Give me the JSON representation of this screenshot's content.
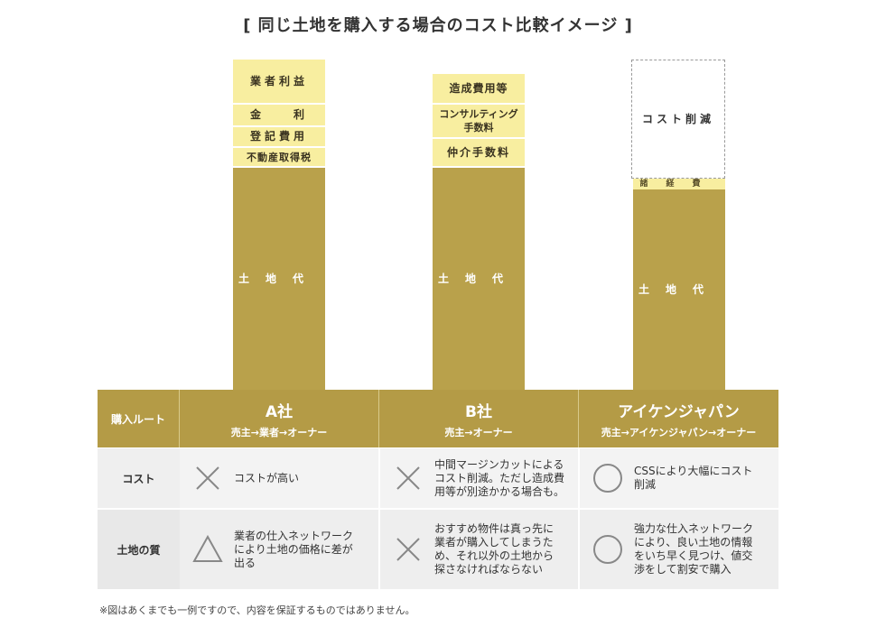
{
  "title": "[ 同じ土地を購入する場合のコスト比較イメージ ]",
  "chart_data": {
    "type": "stacked-bar",
    "title": "[ 同じ土地を購入する場合のコスト比較イメージ ]",
    "columns": [
      {
        "name": "A社",
        "segments": [
          "業者利益",
          "金　　利",
          "登記費用",
          "不動産取得税",
          "土地代"
        ]
      },
      {
        "name": "B社",
        "segments": [
          "造成費用等",
          "コンサルティング 手数料",
          "仲介手数料",
          "土地代"
        ]
      },
      {
        "name": "アイケンジャパン",
        "segments": [
          "コスト削減",
          "諸経費",
          "土地代"
        ]
      }
    ]
  },
  "bars": {
    "a": {
      "profit": "業者利益",
      "interest": "金　　利",
      "registration": "登記費用",
      "tax": "不動産取得税",
      "land": "土地代"
    },
    "b": {
      "construction": "造成費用等",
      "consulting_1": "コンサルティング",
      "consulting_2": "手数料",
      "brokerage": "仲介手数料",
      "land": "土地代"
    },
    "c": {
      "reduction": "コスト削減",
      "misc": "諸経費",
      "land": "土地代"
    }
  },
  "colors": {
    "land": "#b9a14b",
    "extra": "#f8eea0",
    "header": "#b49b46"
  },
  "table": {
    "route_label": "購入ルート",
    "columns": [
      {
        "name": "A社",
        "route": "売主→業者→オーナー"
      },
      {
        "name": "B社",
        "route": "売主→オーナー"
      },
      {
        "name": "アイケンジャパン",
        "route": "売主→アイケンジャパン→オーナー"
      }
    ],
    "rows": [
      {
        "label": "コスト",
        "cells": [
          {
            "symbol": "cross",
            "text": "コストが高い"
          },
          {
            "symbol": "cross",
            "text": "中間マージンカットによる\nコスト削減。ただし造成費\n用等が別途かかる場合も。"
          },
          {
            "symbol": "circle",
            "text": "CSSにより大幅にコスト\n削減"
          }
        ]
      },
      {
        "label": "土地の質",
        "cells": [
          {
            "symbol": "triangle",
            "text": "業者の仕入ネットワーク\nにより土地の価格に差が\n出る"
          },
          {
            "symbol": "cross",
            "text": "おすすめ物件は真っ先に\n業者が購入してしまうた\nめ、それ以外の土地から\n探さなければならない"
          },
          {
            "symbol": "circle",
            "text": "強力な仕入ネットワーク\nにより、良い土地の情報\nをいち早く見つけ、値交\n渉をして割安で購入"
          }
        ]
      }
    ]
  },
  "note": "※図はあくまでも一例ですので、内容を保証するものではありません。"
}
